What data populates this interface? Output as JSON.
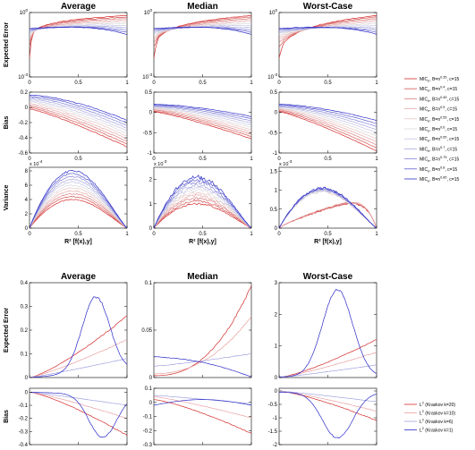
{
  "chart_data": [
    {
      "type": "line",
      "group": "mic",
      "column_titles": [
        "Average",
        "Median",
        "Worst-Case"
      ],
      "x_label": "R² [f(x),y]",
      "x_ticks": [
        "0",
        "0.5",
        "1"
      ],
      "rows": [
        {
          "ylabel": "Expected Error",
          "ylim": [
            0.001,
            1
          ],
          "scale": "log",
          "yticks": [
            {
              "v": 1,
              "b": "10",
              "e": "0"
            },
            {
              "v": 0.001,
              "b": "10",
              "e": "-3"
            }
          ],
          "range": [
            0.001,
            1
          ]
        },
        {
          "ylabel": "Bias",
          "ylim": [
            -0.6,
            0.2
          ],
          "scale": "linear",
          "yticks_by_col": [
            [
              {
                "v": 0.2,
                "t": "0.2"
              },
              {
                "v": 0,
                "t": "0"
              },
              {
                "v": -0.2,
                "t": "-0.2"
              },
              {
                "v": -0.4,
                "t": "-0.4"
              },
              {
                "v": -0.6,
                "t": "-0.6"
              }
            ],
            [
              {
                "v": 0.5,
                "t": "0.5"
              },
              {
                "v": 0,
                "t": "0"
              },
              {
                "v": -0.5,
                "t": "-0.5"
              },
              {
                "v": -1,
                "t": "-1"
              }
            ],
            [
              {
                "v": 0.5,
                "t": "0.5"
              },
              {
                "v": 0,
                "t": "0"
              },
              {
                "v": -0.5,
                "t": "-0.5"
              },
              {
                "v": -1,
                "t": "-1"
              }
            ]
          ],
          "ylim_by_col": [
            [
              -0.6,
              0.2
            ],
            [
              -1,
              0.5
            ],
            [
              -1,
              0.5
            ]
          ]
        },
        {
          "ylabel": "Variance",
          "scale": "linear",
          "multipliers": [
            {
              "b": "x 10",
              "e": "-4"
            },
            {
              "b": "x 10",
              "e": "-3"
            },
            {
              "b": "x 10",
              "e": "-3"
            }
          ],
          "yticks_by_col": [
            [
              {
                "v": 0,
                "t": "0"
              },
              {
                "v": 2,
                "t": "2"
              },
              {
                "v": 4,
                "t": "4"
              },
              {
                "v": 6,
                "t": "6"
              },
              {
                "v": 8,
                "t": "8"
              }
            ],
            [
              {
                "v": 0,
                "t": "0"
              },
              {
                "v": 1,
                "t": "1"
              },
              {
                "v": 2,
                "t": "2"
              }
            ],
            [
              {
                "v": 0,
                "t": "0"
              },
              {
                "v": 0.5,
                "t": "0.5"
              },
              {
                "v": 1,
                "t": "1"
              },
              {
                "v": 1.5,
                "t": "1.5"
              }
            ]
          ],
          "ylim_by_col": [
            [
              0,
              8.5
            ],
            [
              0,
              2.5
            ],
            [
              0,
              1.6
            ]
          ]
        }
      ],
      "series": [
        {
          "name": "MIC_e, B=n^0.35, c=15",
          "color": "#d42a2a"
        },
        {
          "name": "MIC_e, B=n^0.4, c=15",
          "color": "#d45454"
        },
        {
          "name": "MIC_e, B=n^0.45, c=15",
          "color": "#dc7e7e"
        },
        {
          "name": "MIC_e, B=n^0.5, c=15",
          "color": "#e4a8a8"
        },
        {
          "name": "MIC_e, B=n^0.55, c=15",
          "color": "#e8c4c4"
        },
        {
          "name": "MIC_e, B=n^0.6, c=15",
          "color": "#d8d8dc"
        },
        {
          "name": "MIC_e, B=n^0.65, c=15",
          "color": "#c4c4e4"
        },
        {
          "name": "MIC_e, B=n^0.7, c=15",
          "color": "#a8a8e0"
        },
        {
          "name": "MIC_e, B=n^0.75, c=15",
          "color": "#8484d8"
        },
        {
          "name": "MIC_e, B=n^0.8, c=15",
          "color": "#5c5cd0"
        },
        {
          "name": "MIC_e, B=n^0.85, c=15",
          "color": "#3030c8"
        }
      ],
      "legend": [
        {
          "b": "MIC",
          "s": "e",
          "m": ", B=n",
          "p": "0.35",
          "t": ", c=15"
        },
        {
          "b": "MIC",
          "s": "e",
          "m": ", B=n",
          "p": "0.4",
          "t": ", c=15"
        },
        {
          "b": "MIC",
          "s": "e",
          "m": ", B=n",
          "p": "0.45",
          "t": ", c=15"
        },
        {
          "b": "MIC",
          "s": "e",
          "m": ", B=n",
          "p": "0.5",
          "t": ", c=15"
        },
        {
          "b": "MIC",
          "s": "e",
          "m": ", B=n",
          "p": "0.55",
          "t": ", c=15"
        },
        {
          "b": "MIC",
          "s": "e",
          "m": ", B=n",
          "p": "0.6",
          "t": ", c=15"
        },
        {
          "b": "MIC",
          "s": "e",
          "m": ", B=n",
          "p": "0.65",
          "t": ", c=15"
        },
        {
          "b": "MIC",
          "s": "e",
          "m": ", B=n",
          "p": "0.7",
          "t": ", c=15"
        },
        {
          "b": "MIC",
          "s": "e",
          "m": ", B=n",
          "p": "0.75",
          "t": ", c=15"
        },
        {
          "b": "MIC",
          "s": "e",
          "m": ", B=n",
          "p": "0.8",
          "t": ", c=15"
        },
        {
          "b": "MIC",
          "s": "e",
          "m": ", B=n",
          "p": "0.85",
          "t": ", c=15"
        }
      ]
    },
    {
      "type": "line",
      "group": "l2",
      "column_titles": [
        "Average",
        "Median",
        "Worst-Case"
      ],
      "rows": [
        {
          "ylabel": "Expected Error",
          "scale": "linear",
          "yticks_by_col": [
            [
              {
                "v": 0,
                "t": "0"
              },
              {
                "v": 0.1,
                "t": "0.1"
              },
              {
                "v": 0.2,
                "t": "0.2"
              },
              {
                "v": 0.3,
                "t": "0.3"
              },
              {
                "v": 0.4,
                "t": "0.4"
              }
            ],
            [
              {
                "v": 0,
                "t": "0"
              },
              {
                "v": 0.05,
                "t": "0.05"
              },
              {
                "v": 0.1,
                "t": "0.1"
              }
            ],
            [
              {
                "v": 0,
                "t": "0"
              },
              {
                "v": 1,
                "t": "1"
              },
              {
                "v": 2,
                "t": "2"
              },
              {
                "v": 3,
                "t": "3"
              }
            ]
          ],
          "ylim_by_col": [
            [
              0,
              0.4
            ],
            [
              0,
              0.1
            ],
            [
              0,
              3
            ]
          ]
        },
        {
          "ylabel": "Bias",
          "scale": "linear",
          "yticks_by_col": [
            [
              {
                "v": 0,
                "t": "0"
              },
              {
                "v": -0.1,
                "t": "-0.1"
              },
              {
                "v": -0.2,
                "t": "-0.2"
              },
              {
                "v": -0.3,
                "t": "-0.3"
              },
              {
                "v": -0.4,
                "t": "-0.4"
              }
            ],
            [
              {
                "v": 0.1,
                "t": "0.1"
              },
              {
                "v": 0,
                "t": "0"
              },
              {
                "v": -0.1,
                "t": "-0.1"
              },
              {
                "v": -0.2,
                "t": "-0.2"
              },
              {
                "v": -0.3,
                "t": "-0.3"
              }
            ],
            [
              {
                "v": 0,
                "t": "0"
              },
              {
                "v": -0.5,
                "t": "-0.5"
              },
              {
                "v": -1,
                "t": "-1"
              },
              {
                "v": -1.5,
                "t": "-1.5"
              },
              {
                "v": -2,
                "t": "-2"
              }
            ]
          ],
          "ylim_by_col": [
            [
              -0.4,
              0.03
            ],
            [
              -0.3,
              0.1
            ],
            [
              -2,
              0.1
            ]
          ]
        }
      ],
      "series": [
        {
          "name": "L² (Kraskov k=20)",
          "color": "#d42a2a"
        },
        {
          "name": "L² (Kraskov k=10)",
          "color": "#e8a0a0"
        },
        {
          "name": "L² (Kraskov k=6)",
          "color": "#a0a0e0"
        },
        {
          "name": "L² (Kraskov k=1)",
          "color": "#2a2ac8"
        }
      ],
      "legend": [
        {
          "b": "L",
          "p": "2",
          "t": " (Kraskov k=20)"
        },
        {
          "b": "L",
          "p": "2",
          "t": " (Kraskov k=10)"
        },
        {
          "b": "L",
          "p": "2",
          "t": " (Kraskov k=6)"
        },
        {
          "b": "L",
          "p": "2",
          "t": " (Kraskov k=1)"
        }
      ]
    }
  ]
}
